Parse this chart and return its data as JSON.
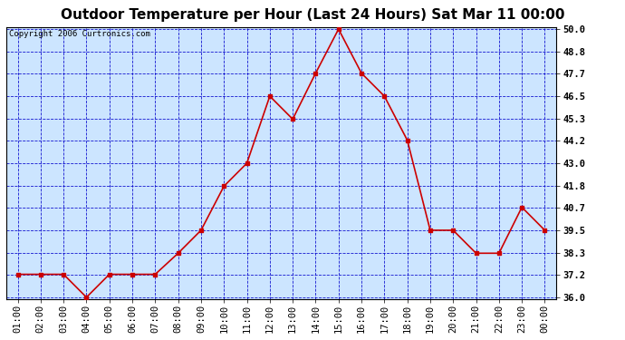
{
  "title": "Outdoor Temperature per Hour (Last 24 Hours) Sat Mar 11 00:00",
  "copyright": "Copyright 2006 Curtronics.com",
  "x_labels": [
    "01:00",
    "02:00",
    "03:00",
    "04:00",
    "05:00",
    "06:00",
    "07:00",
    "08:00",
    "09:00",
    "10:00",
    "11:00",
    "12:00",
    "13:00",
    "14:00",
    "15:00",
    "16:00",
    "17:00",
    "18:00",
    "19:00",
    "20:00",
    "21:00",
    "22:00",
    "23:00",
    "00:00"
  ],
  "y_values": [
    37.2,
    37.2,
    37.2,
    36.0,
    37.2,
    37.2,
    37.2,
    38.3,
    39.5,
    41.8,
    43.0,
    46.5,
    45.3,
    47.7,
    50.0,
    47.7,
    46.5,
    44.2,
    39.5,
    39.5,
    38.3,
    38.3,
    40.7,
    39.5
  ],
  "y_ticks": [
    36.0,
    37.2,
    38.3,
    39.5,
    40.7,
    41.8,
    43.0,
    44.2,
    45.3,
    46.5,
    47.7,
    48.8,
    50.0
  ],
  "y_min": 36.0,
  "y_max": 50.0,
  "line_color": "#cc0000",
  "marker_color": "#cc0000",
  "bg_color": "#cce5ff",
  "grid_color": "#0000cc",
  "title_fontsize": 11,
  "copyright_fontsize": 6.5,
  "tick_fontsize": 7.5
}
